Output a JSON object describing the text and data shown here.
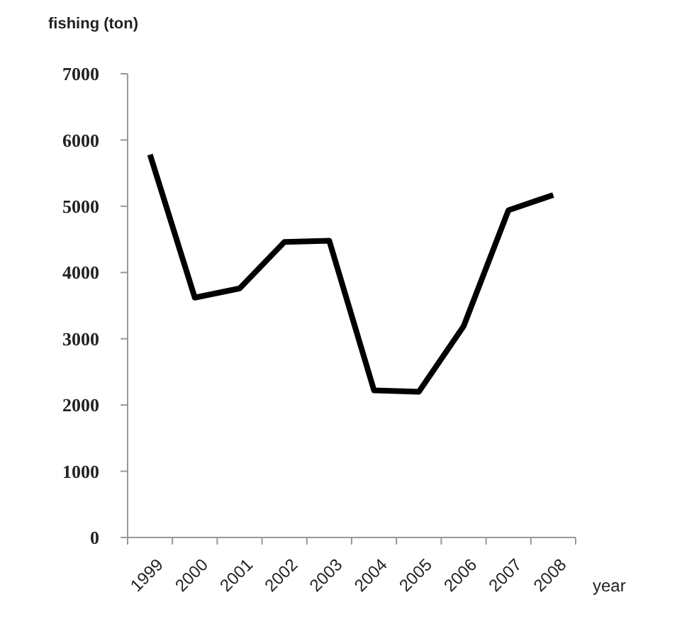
{
  "chart_data": {
    "type": "line",
    "xlabel": "year",
    "ylabel": "fishing (ton)",
    "categories": [
      "1999",
      "2000",
      "2001",
      "2002",
      "2003",
      "2004",
      "2005",
      "2006",
      "2007",
      "2008"
    ],
    "series": [
      {
        "color": "#000000",
        "values": [
          5780,
          3620,
          3760,
          4460,
          4480,
          2220,
          2200,
          3190,
          4940,
          5170
        ]
      }
    ],
    "ylim": [
      0,
      7000
    ],
    "yticks": [
      0,
      1000,
      2000,
      3000,
      4000,
      5000,
      6000,
      7000
    ],
    "grid": false,
    "marker": "none",
    "line_style": "solid"
  }
}
